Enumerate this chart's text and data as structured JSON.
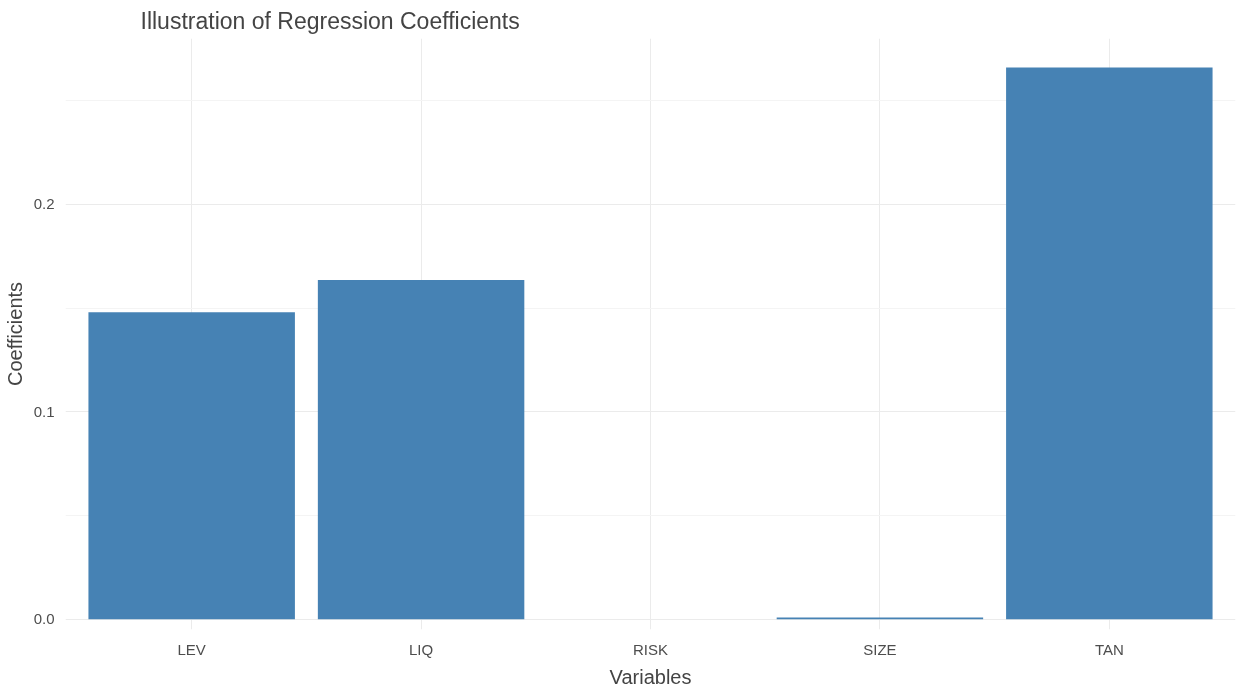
{
  "chart_data": {
    "type": "bar",
    "title": "Illustration of Regression Coefficients",
    "xlabel": "Variables",
    "ylabel": "Coefficients",
    "categories": [
      "LEV",
      "LIQ",
      "RISK",
      "SIZE",
      "TAN"
    ],
    "values": [
      0.148,
      0.1635,
      0.0,
      0.0008,
      0.266
    ],
    "color": "#4682b4",
    "ylim": [
      -0.005,
      0.28
    ],
    "yticks": [
      {
        "value": 0,
        "label": "0.0"
      },
      0.1,
      0.2
    ],
    "grid": true
  }
}
